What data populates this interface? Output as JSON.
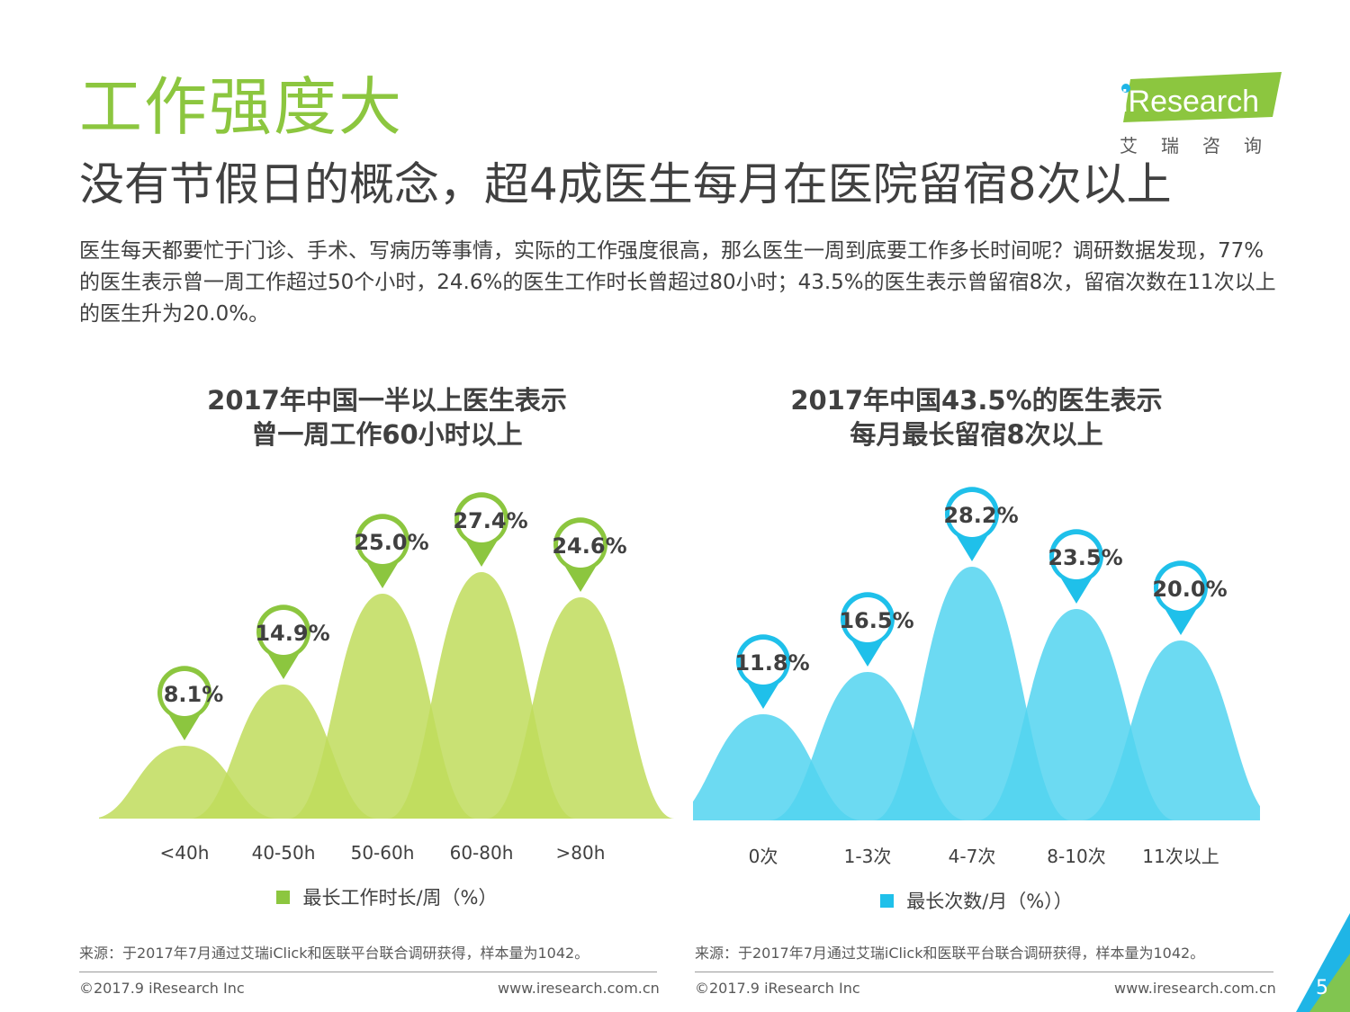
{
  "page": {
    "title": "工作强度大",
    "subtitle": "没有节假日的概念，超4成医生每月在医院留宿8次以上",
    "body": "医生每天都要忙于门诊、手术、写病历等事情，实际的工作强度很高，那么医生一周到底要工作多长时间呢？调研数据发现，77%的医生表示曾一周工作超过50个小时，24.6%的医生工作时长曾超过80小时；43.5%的医生表示曾留宿8次，留宿次数在11次以上的医生升为20.0%。",
    "page_number": "5"
  },
  "logo": {
    "brand": "iResearch",
    "brand_cn": "艾瑞咨询"
  },
  "colors": {
    "title_green": "#8cc63f",
    "green_fill": "#bfdc5c",
    "green_pin": "#8cc63f",
    "blue_fill": "#52d3f0",
    "blue_pin": "#1fc0ea",
    "corner_blue": "#1fb5e6",
    "corner_green": "#8cc63f"
  },
  "chart_data": [
    {
      "type": "area",
      "title_line1": "2017年中国一半以上医生表示",
      "title_line2": "曾一周工作60小时以上",
      "categories": [
        "<40h",
        "40-50h",
        "50-60h",
        "60-80h",
        ">80h"
      ],
      "series": [
        {
          "name": "最长工作时长/周（%）",
          "values": [
            8.1,
            14.9,
            25.0,
            27.4,
            24.6
          ]
        }
      ],
      "labels": [
        "8.1%",
        "14.9%",
        "25.0%",
        "27.4%",
        "24.6%"
      ],
      "legend": "最长工作时长/周（%）",
      "ylim": [
        0,
        30
      ]
    },
    {
      "type": "area",
      "title_line1": "2017年中国43.5%的医生表示",
      "title_line2": "每月最长留宿8次以上",
      "categories": [
        "0次",
        "1-3次",
        "4-7次",
        "8-10次",
        "11次以上"
      ],
      "series": [
        {
          "name": "最长次数/月（%））",
          "values": [
            11.8,
            16.5,
            28.2,
            23.5,
            20.0
          ]
        }
      ],
      "labels": [
        "11.8%",
        "16.5%",
        "28.2%",
        "23.5%",
        "20.0%"
      ],
      "legend": "最长次数/月（%））",
      "ylim": [
        0,
        30
      ]
    }
  ],
  "footer": {
    "source": "来源：于2017年7月通过艾瑞iClick和医联平台联合调研获得，样本量为1042。",
    "copyright": "©2017.9 iResearch Inc",
    "url": "www.iresearch.com.cn"
  }
}
